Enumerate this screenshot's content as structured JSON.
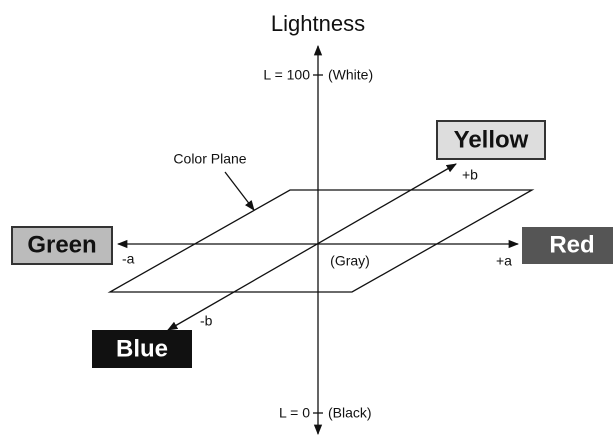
{
  "diagram": {
    "lightness_axis": {
      "title": "Lightness",
      "top": {
        "label": "L = 100",
        "note": "(White)"
      },
      "bottom": {
        "label": "L = 0",
        "note": "(Black)"
      }
    },
    "plane_label": "Color Plane",
    "a_axis": {
      "minus": "-a",
      "plus": "+a"
    },
    "b_axis": {
      "minus": "-b",
      "plus": "+b"
    },
    "center": "(Gray)",
    "colors": {
      "yellow": "Yellow",
      "green": "Green",
      "red": "Red",
      "blue": "Blue"
    }
  }
}
